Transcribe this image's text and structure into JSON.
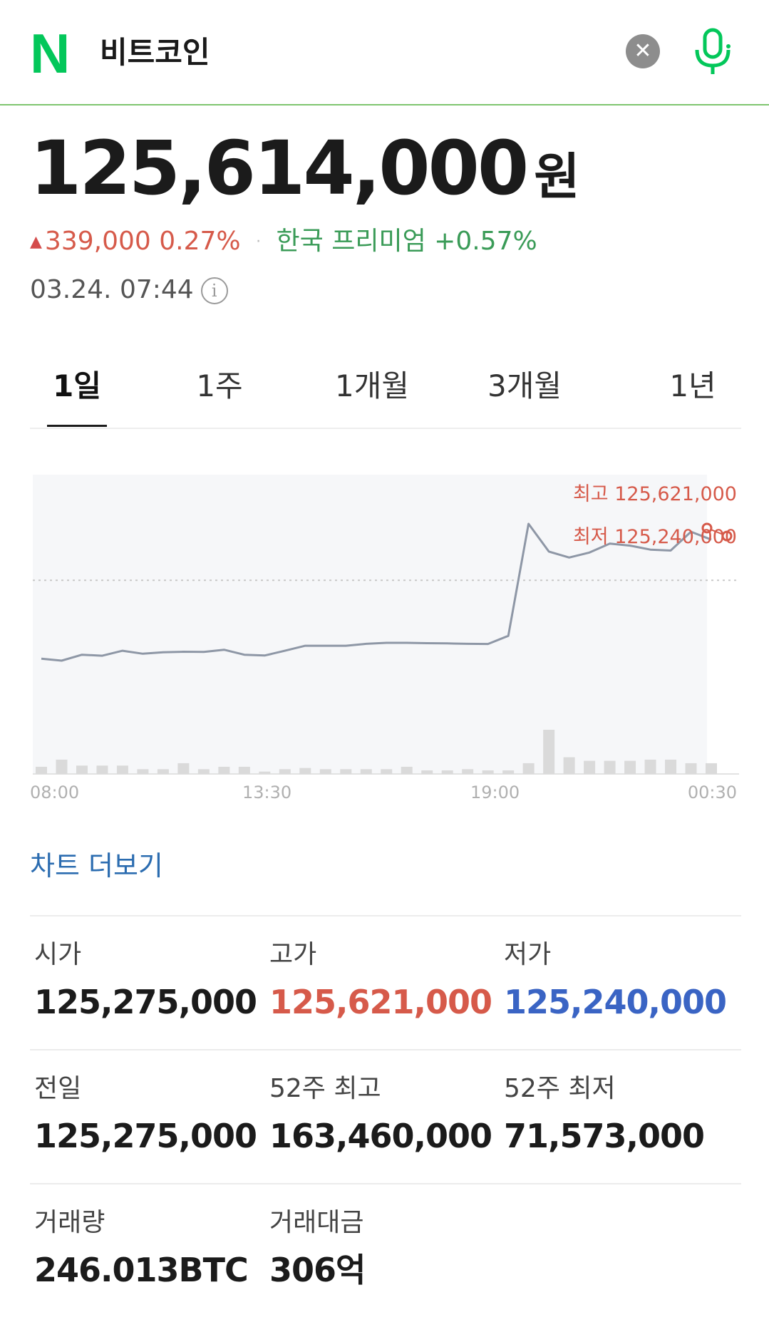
{
  "header": {
    "logo_letter": "N",
    "query": "비트코인",
    "clear_symbol": "✕",
    "brand_color": "#03c75a"
  },
  "price": {
    "value": "125,614,000",
    "unit": "원",
    "change_arrow": "▲",
    "change_amount": "339,000",
    "change_percent": "0.27%",
    "separator": "·",
    "premium_label": "한국 프리미엄",
    "premium_value": "+0.57%",
    "timestamp": "03.24. 07:44",
    "info_symbol": "i"
  },
  "tabs": [
    {
      "label": "1일",
      "active": true
    },
    {
      "label": "1주",
      "active": false
    },
    {
      "label": "1개월",
      "active": false
    },
    {
      "label": "3개월",
      "active": false
    },
    {
      "label": "1년",
      "active": false
    }
  ],
  "chart_data": {
    "type": "line",
    "x_ticks": [
      "08:00",
      "13:30",
      "19:00",
      "00:30"
    ],
    "high_label": "최고 125,621,000",
    "low_label": "최저 125,240,000",
    "reference_line": 125275000,
    "ylim": [
      124500000,
      125700000
    ],
    "series": [
      {
        "values": [
          124880000,
          124870000,
          124900000,
          124895000,
          124920000,
          124905000,
          124912000,
          124915000,
          124914000,
          124925000,
          124900000,
          124896000,
          124920000,
          124945000,
          124945000,
          124945000,
          124955000,
          124960000,
          124960000,
          124958000,
          124957000,
          124955000,
          124954000,
          124995000,
          125560000,
          125420000,
          125390000,
          125415000,
          125460000,
          125450000,
          125430000,
          125425000,
          125520000,
          125480000
        ]
      }
    ],
    "volume": [
      6,
      12,
      7,
      7,
      7,
      4,
      4,
      9,
      4,
      6,
      6,
      2,
      4,
      5,
      4,
      4,
      4,
      4,
      6,
      3,
      3,
      4,
      3,
      3,
      9,
      37,
      14,
      11,
      11,
      11,
      12,
      12,
      9,
      9
    ]
  },
  "more_chart_label": "차트 더보기",
  "stats": [
    {
      "label": "시가",
      "value": "125,275,000"
    },
    {
      "label": "고가",
      "value": "125,621,000"
    },
    {
      "label": "저가",
      "value": "125,240,000"
    },
    {
      "label": "전일",
      "value": "125,275,000"
    },
    {
      "label": "52주 최고",
      "value": "163,460,000"
    },
    {
      "label": "52주 최저",
      "value": "71,573,000"
    },
    {
      "label": "거래량",
      "value": "246.013BTC"
    },
    {
      "label": "거래대금",
      "value": "306억"
    }
  ],
  "colors": {
    "up": "#d65a4a",
    "down": "#3a64c4",
    "premium": "#3a9b57",
    "link": "#2b6cb0"
  }
}
